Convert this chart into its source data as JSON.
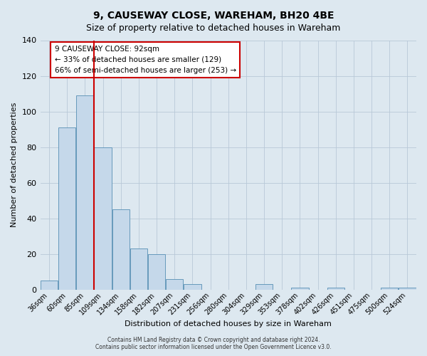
{
  "title": "9, CAUSEWAY CLOSE, WAREHAM, BH20 4BE",
  "subtitle": "Size of property relative to detached houses in Wareham",
  "xlabel": "Distribution of detached houses by size in Wareham",
  "ylabel": "Number of detached properties",
  "bin_labels": [
    "36sqm",
    "60sqm",
    "85sqm",
    "109sqm",
    "134sqm",
    "158sqm",
    "182sqm",
    "207sqm",
    "231sqm",
    "256sqm",
    "280sqm",
    "304sqm",
    "329sqm",
    "353sqm",
    "378sqm",
    "402sqm",
    "426sqm",
    "451sqm",
    "475sqm",
    "500sqm",
    "524sqm"
  ],
  "bar_values": [
    5,
    91,
    109,
    80,
    45,
    23,
    20,
    6,
    3,
    0,
    0,
    0,
    3,
    0,
    1,
    0,
    1,
    0,
    0,
    1,
    1
  ],
  "bar_color": "#c5d8ea",
  "bar_edge_color": "#6699bb",
  "vline_color": "#cc0000",
  "ylim": [
    0,
    140
  ],
  "annotation_title": "9 CAUSEWAY CLOSE: 92sqm",
  "annotation_line1": "← 33% of detached houses are smaller (129)",
  "annotation_line2": "66% of semi-detached houses are larger (253) →",
  "annotation_box_color": "#ffffff",
  "annotation_box_edge": "#cc0000",
  "background_color": "#dde8f0",
  "plot_bg_color": "#dde8f0",
  "footer_line1": "Contains HM Land Registry data © Crown copyright and database right 2024.",
  "footer_line2": "Contains public sector information licensed under the Open Government Licence v3.0.",
  "title_fontsize": 10,
  "subtitle_fontsize": 9,
  "ylabel_fontsize": 8,
  "xlabel_fontsize": 8
}
